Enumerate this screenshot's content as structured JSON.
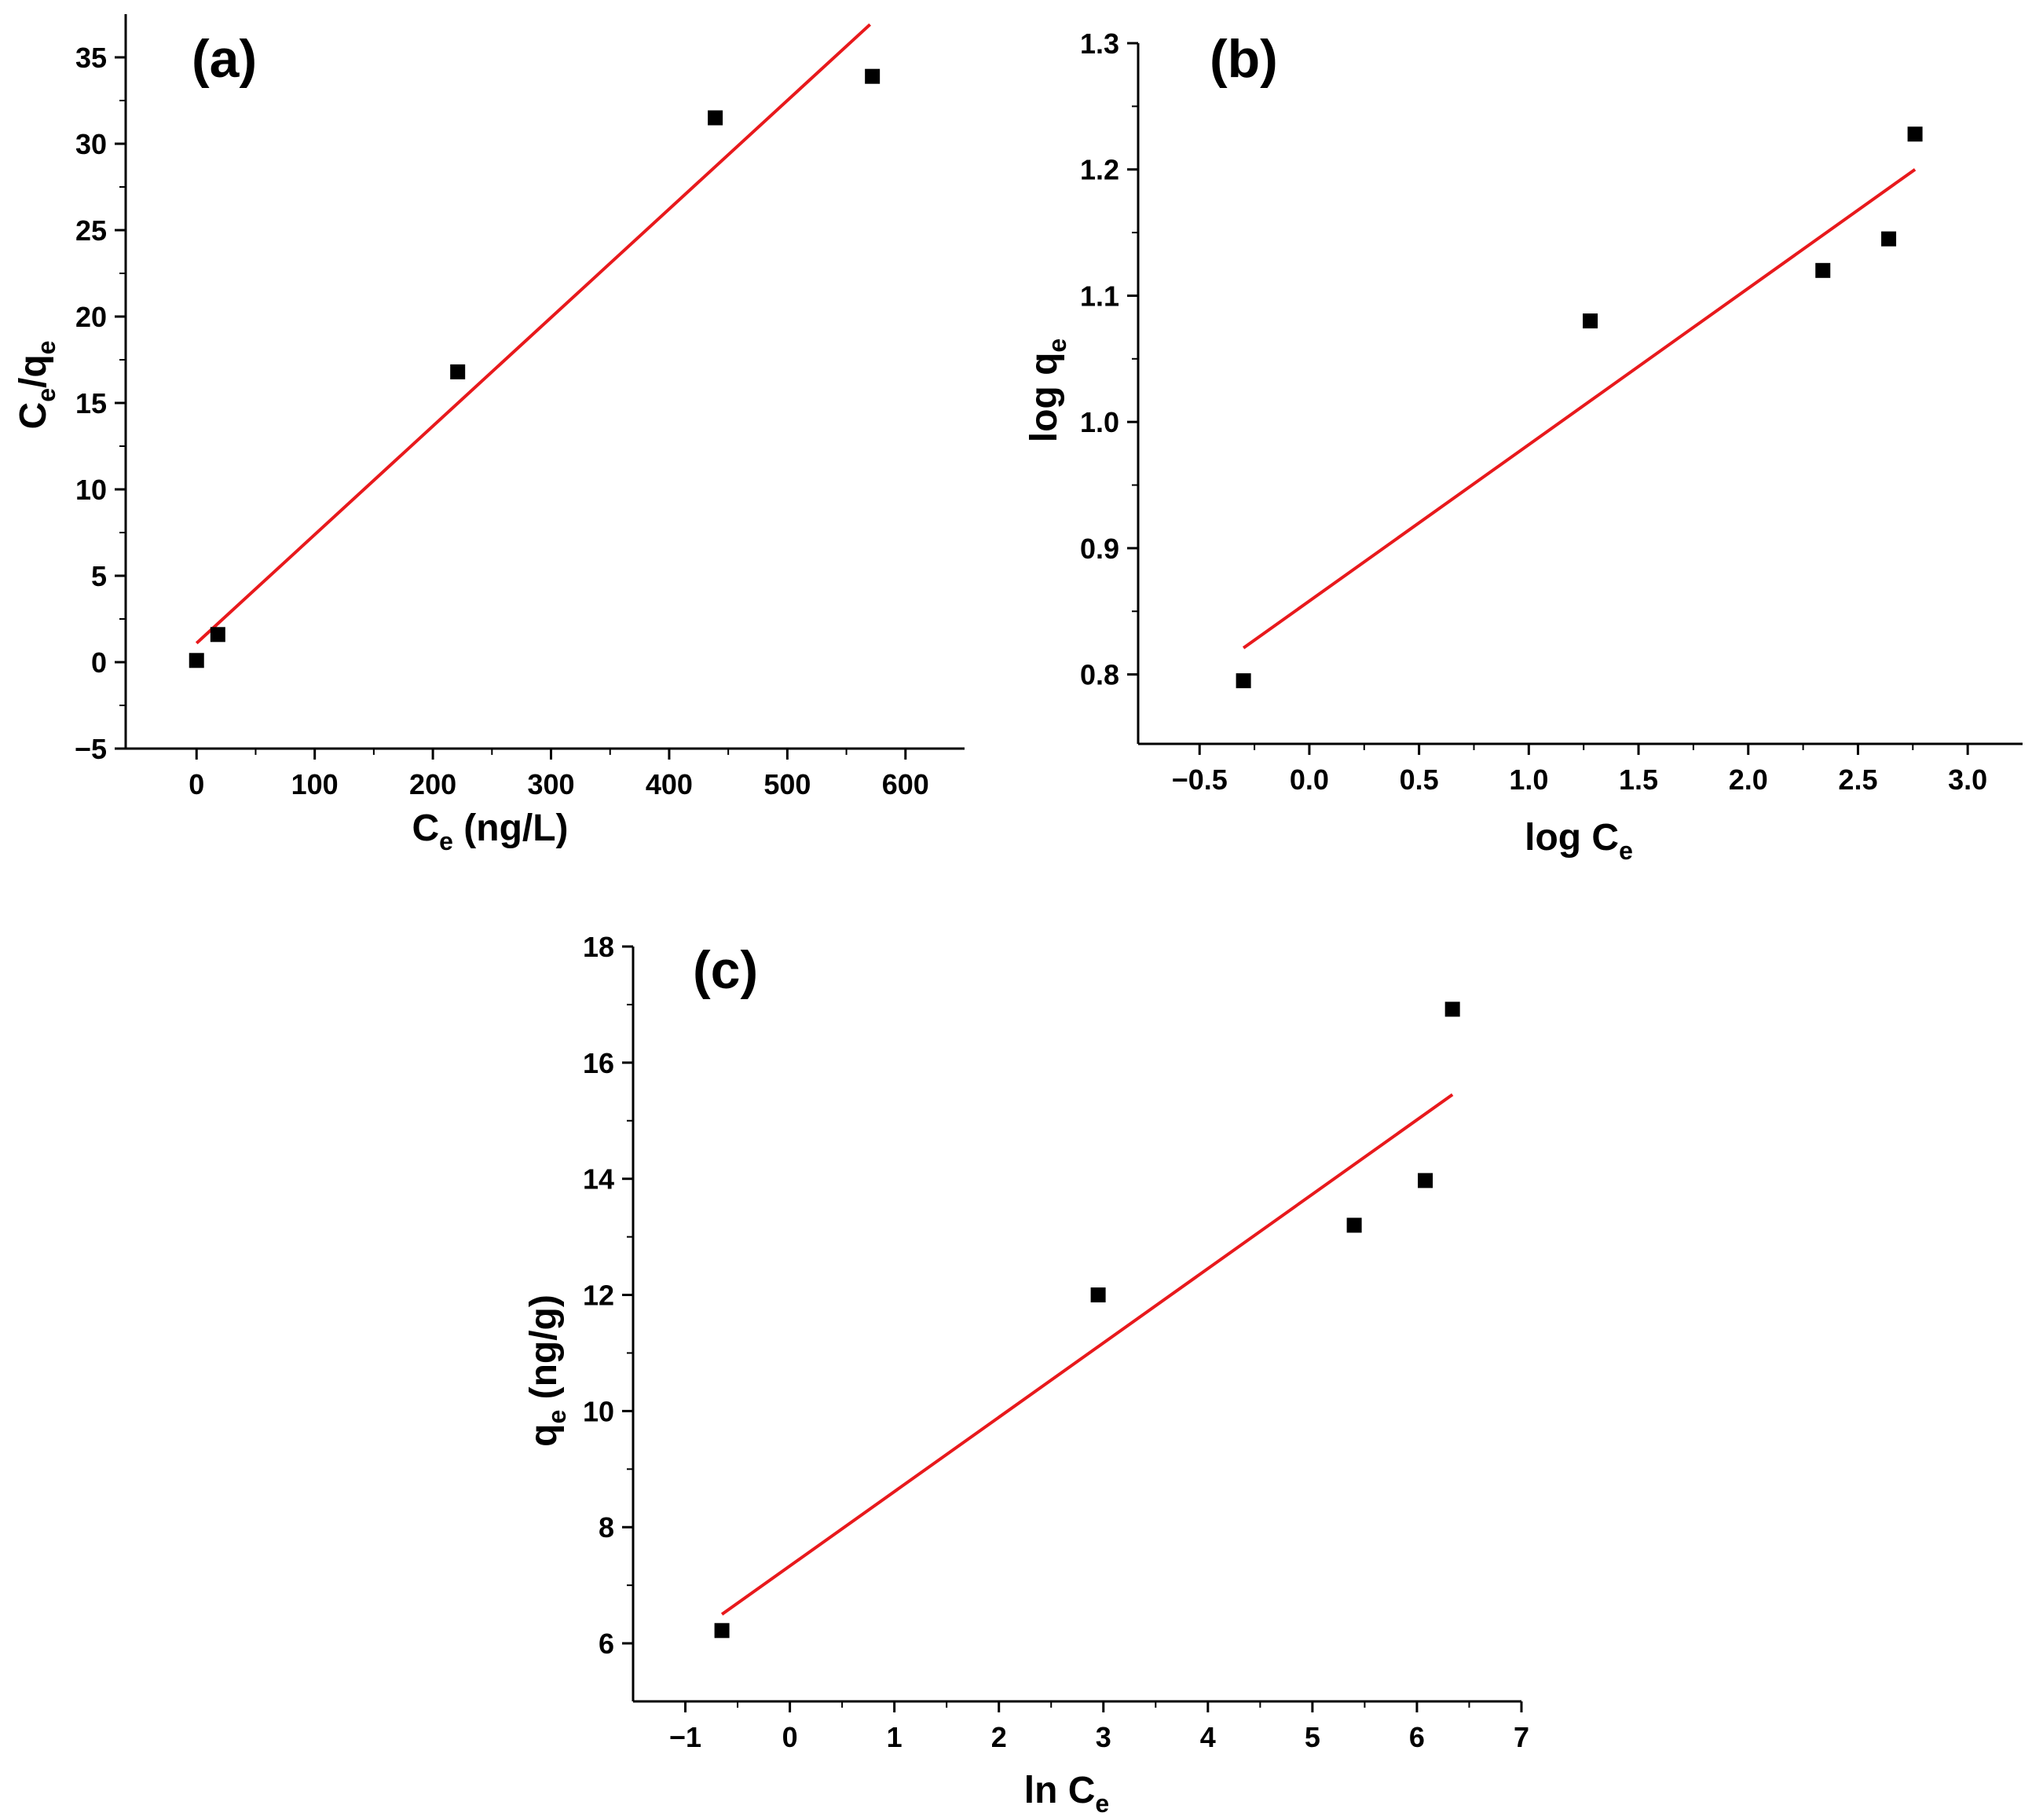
{
  "chart_data": [
    {
      "type": "scatter",
      "panel": "(a)",
      "xlabel": {
        "base": "C",
        "sub": "e",
        "suffix": " (ng/L)"
      },
      "ylabel": {
        "b1": "C",
        "s1": "e",
        "mid": "/q",
        "s2": "e"
      },
      "xlim": [
        -60,
        650
      ],
      "ylim": [
        -5,
        37.5
      ],
      "xticks": [
        0,
        100,
        200,
        300,
        400,
        500,
        600
      ],
      "yticks": [
        -5,
        0,
        5,
        10,
        15,
        20,
        25,
        30,
        35
      ],
      "ytick_labels": [
        "−5",
        "0",
        "5",
        "10",
        "15",
        "20",
        "25",
        "30",
        "35"
      ],
      "points": [
        {
          "x": 0,
          "y": 0.1
        },
        {
          "x": 18,
          "y": 1.6
        },
        {
          "x": 221,
          "y": 16.8
        },
        {
          "x": 439,
          "y": 31.5
        },
        {
          "x": 572,
          "y": 33.9
        }
      ],
      "fit": [
        {
          "x": 0,
          "y": 1.1
        },
        {
          "x": 570,
          "y": 36.9
        }
      ],
      "marker_color": "#000000",
      "fit_color": "#e8191c"
    },
    {
      "type": "scatter",
      "panel": "(b)",
      "xlabel": {
        "base": "log C",
        "sub": "e",
        "suffix": ""
      },
      "ylabel": {
        "b1": "log q",
        "s1": "e",
        "mid": "",
        "s2": ""
      },
      "xlim": [
        -0.78,
        3.25
      ],
      "ylim": [
        0.745,
        1.3
      ],
      "xticks": [
        -0.5,
        0.0,
        0.5,
        1.0,
        1.5,
        2.0,
        2.5,
        3.0
      ],
      "xtick_labels": [
        "−0.5",
        "0.0",
        "0.5",
        "1.0",
        "1.5",
        "2.0",
        "2.5",
        "3.0"
      ],
      "yticks": [
        0.8,
        0.9,
        1.0,
        1.1,
        1.2,
        1.3
      ],
      "ytick_labels": [
        "0.8",
        "0.9",
        "1.0",
        "1.1",
        "1.2",
        "1.3"
      ],
      "points": [
        {
          "x": -0.3,
          "y": 0.795
        },
        {
          "x": 1.28,
          "y": 1.08
        },
        {
          "x": 2.34,
          "y": 1.12
        },
        {
          "x": 2.64,
          "y": 1.145
        },
        {
          "x": 2.76,
          "y": 1.228
        }
      ],
      "fit": [
        {
          "x": -0.3,
          "y": 0.821
        },
        {
          "x": 2.76,
          "y": 1.2
        }
      ],
      "marker_color": "#000000",
      "fit_color": "#e8191c"
    },
    {
      "type": "scatter",
      "panel": "(c)",
      "xlabel": {
        "base": "ln C",
        "sub": "e",
        "suffix": ""
      },
      "ylabel": {
        "b1": "q",
        "s1": "e",
        "mid": " (ng/g)",
        "s2": ""
      },
      "xlim": [
        -1.5,
        7
      ],
      "ylim": [
        5.0,
        18.0
      ],
      "xticks": [
        -1,
        0,
        1,
        2,
        3,
        4,
        5,
        6,
        7
      ],
      "xtick_labels": [
        "−1",
        "0",
        "1",
        "2",
        "3",
        "4",
        "5",
        "6",
        "7"
      ],
      "yticks": [
        6,
        8,
        10,
        12,
        14,
        16,
        18
      ],
      "points": [
        {
          "x": -0.65,
          "y": 6.22
        },
        {
          "x": 2.95,
          "y": 12.0
        },
        {
          "x": 5.4,
          "y": 13.2
        },
        {
          "x": 6.08,
          "y": 13.97
        },
        {
          "x": 6.34,
          "y": 16.92
        }
      ],
      "fit": [
        {
          "x": -0.65,
          "y": 6.5
        },
        {
          "x": 6.34,
          "y": 15.45
        }
      ],
      "marker_color": "#000000",
      "fit_color": "#e8191c"
    }
  ]
}
